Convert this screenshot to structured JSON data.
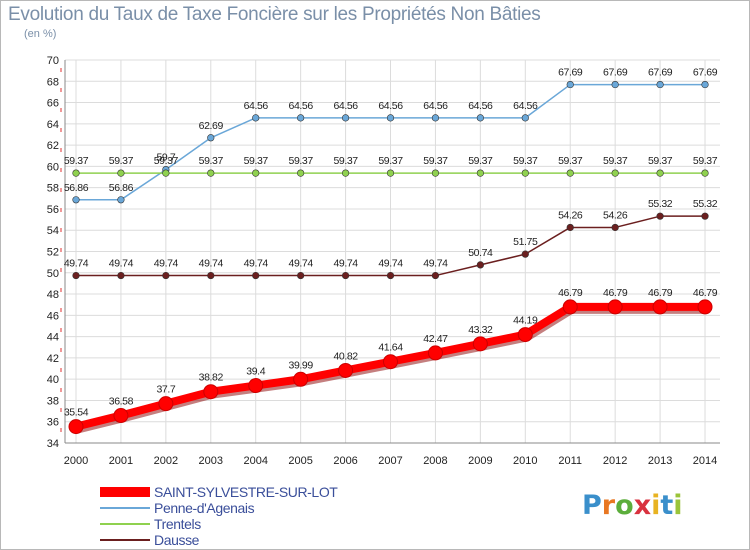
{
  "header": {
    "title": "Evolution du Taux de Taxe Foncière sur les Propriétés Non Bâties",
    "unit": "(en %)"
  },
  "logo": {
    "text": "Proxiti"
  },
  "colors": {
    "background": "#ffffff",
    "plot_background": "#ffffff",
    "grid": "#dcdcdc",
    "axis_text": "#222222",
    "legend_text": "#3a4e9a"
  },
  "chart_data": {
    "type": "line",
    "title": "Evolution du Taux de Taxe Foncière sur les Propriétés Non Bâties",
    "ylabel": "(en %)",
    "xlabel": "",
    "ylim": [
      34,
      70
    ],
    "yticks": [
      34,
      36,
      38,
      40,
      42,
      44,
      46,
      48,
      50,
      52,
      54,
      56,
      58,
      60,
      62,
      64,
      66,
      68,
      70
    ],
    "x": [
      "2000",
      "2001",
      "2002",
      "2003",
      "2004",
      "2005",
      "2006",
      "2007",
      "2008",
      "2009",
      "2010",
      "2011",
      "2012",
      "2013",
      "2014"
    ],
    "grid": true,
    "legend_position": "bottom-left",
    "series": [
      {
        "name": "SAINT-SYLVESTRE-SUR-LOT",
        "color": "#ff0000",
        "values": [
          35.54,
          36.58,
          37.7,
          38.82,
          39.4,
          39.99,
          40.82,
          41.64,
          42.47,
          43.32,
          44.19,
          46.79,
          46.79,
          46.79,
          46.79
        ],
        "labels": [
          "35.54",
          "36.58",
          "37.7",
          "38.82",
          "39.4",
          "39.99",
          "40.82",
          "41.64",
          "42.47",
          "43.32",
          "44.19",
          "46.79",
          "46.79",
          "46.79",
          "46.79"
        ]
      },
      {
        "name": "Penne-d'Agenais",
        "color": "#6aa7d8",
        "values": [
          56.86,
          56.86,
          59.7,
          62.69,
          64.56,
          64.56,
          64.56,
          64.56,
          64.56,
          64.56,
          64.56,
          67.69,
          67.69,
          67.69,
          67.69
        ],
        "labels": [
          "56.86",
          "56.86",
          "59.7",
          "62.69",
          "64.56",
          "64.56",
          "64.56",
          "64.56",
          "64.56",
          "64.56",
          "64.56",
          "67.69",
          "67.69",
          "67.69",
          "67.69"
        ]
      },
      {
        "name": "Trentels",
        "color": "#8fd14f",
        "values": [
          59.37,
          59.37,
          59.37,
          59.37,
          59.37,
          59.37,
          59.37,
          59.37,
          59.37,
          59.37,
          59.37,
          59.37,
          59.37,
          59.37,
          59.37
        ],
        "labels": [
          "59.37",
          "59.37",
          "59.37",
          "59.37",
          "59.37",
          "59.37",
          "59.37",
          "59.37",
          "59.37",
          "59.37",
          "59.37",
          "59.37",
          "59.37",
          "59.37",
          "59.37"
        ]
      },
      {
        "name": "Dausse",
        "color": "#6b1f1f",
        "values": [
          49.74,
          49.74,
          49.74,
          49.74,
          49.74,
          49.74,
          49.74,
          49.74,
          49.74,
          50.74,
          51.75,
          54.26,
          54.26,
          55.32,
          55.32
        ],
        "labels": [
          "49.74",
          "49.74",
          "49.74",
          "49.74",
          "49.74",
          "49.74",
          "49.74",
          "49.74",
          "49.74",
          "50.74",
          "51.75",
          "54.26",
          "54.26",
          "55.32",
          "55.32"
        ]
      }
    ]
  }
}
